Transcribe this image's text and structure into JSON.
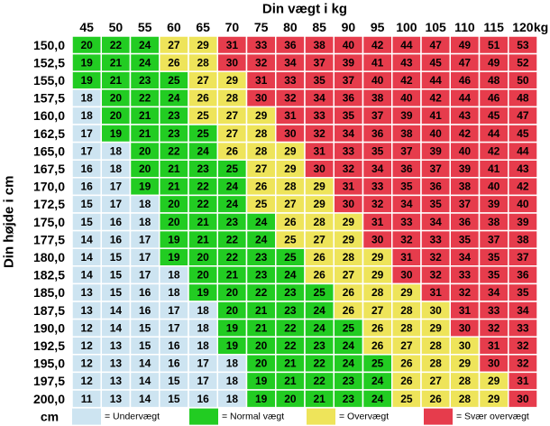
{
  "header": {
    "title": "Din vægt i kg",
    "unit": "kg"
  },
  "side_label": "Din højde i cm",
  "height_unit": "cm",
  "weights": [
    45,
    50,
    55,
    60,
    65,
    70,
    75,
    80,
    85,
    90,
    95,
    100,
    105,
    110,
    115,
    120
  ],
  "heights": [
    "150,0",
    "152,5",
    "155,0",
    "157,5",
    "160,0",
    "162,5",
    "165,0",
    "167,5",
    "170,0",
    "172,5",
    "175,0",
    "177,5",
    "180,0",
    "182,5",
    "185,0",
    "187,5",
    "190,0",
    "192,5",
    "195,0",
    "197,5",
    "200,0"
  ],
  "rows": [
    [
      20,
      22,
      24,
      27,
      29,
      31,
      33,
      36,
      38,
      40,
      42,
      44,
      47,
      49,
      51,
      53
    ],
    [
      19,
      21,
      24,
      26,
      28,
      30,
      32,
      34,
      37,
      39,
      41,
      43,
      45,
      47,
      49,
      52
    ],
    [
      19,
      21,
      23,
      25,
      27,
      29,
      31,
      33,
      35,
      37,
      40,
      42,
      44,
      46,
      48,
      50
    ],
    [
      18,
      20,
      22,
      24,
      26,
      28,
      30,
      32,
      34,
      36,
      38,
      40,
      42,
      44,
      46,
      48
    ],
    [
      18,
      20,
      21,
      23,
      25,
      27,
      29,
      31,
      33,
      35,
      37,
      39,
      41,
      43,
      45,
      47
    ],
    [
      17,
      19,
      21,
      23,
      25,
      27,
      28,
      30,
      32,
      34,
      36,
      38,
      40,
      42,
      44,
      45
    ],
    [
      17,
      18,
      20,
      22,
      24,
      26,
      28,
      29,
      31,
      33,
      35,
      37,
      39,
      40,
      42,
      44
    ],
    [
      16,
      18,
      20,
      21,
      23,
      25,
      27,
      29,
      30,
      32,
      34,
      36,
      37,
      39,
      41,
      43
    ],
    [
      16,
      17,
      19,
      21,
      22,
      24,
      26,
      28,
      29,
      31,
      33,
      35,
      36,
      38,
      40,
      42
    ],
    [
      15,
      17,
      18,
      20,
      22,
      24,
      25,
      27,
      29,
      30,
      32,
      34,
      35,
      37,
      39,
      40
    ],
    [
      15,
      16,
      18,
      20,
      21,
      23,
      24,
      26,
      28,
      29,
      31,
      33,
      34,
      36,
      38,
      39
    ],
    [
      14,
      16,
      17,
      19,
      21,
      22,
      24,
      25,
      27,
      29,
      30,
      32,
      33,
      35,
      37,
      38
    ],
    [
      14,
      15,
      17,
      19,
      20,
      22,
      23,
      25,
      26,
      28,
      29,
      31,
      32,
      34,
      35,
      37
    ],
    [
      14,
      15,
      17,
      18,
      20,
      21,
      23,
      24,
      26,
      27,
      29,
      30,
      32,
      33,
      35,
      36
    ],
    [
      13,
      15,
      16,
      18,
      19,
      20,
      22,
      23,
      25,
      26,
      28,
      29,
      31,
      32,
      34,
      35
    ],
    [
      13,
      14,
      16,
      17,
      18,
      20,
      21,
      23,
      24,
      26,
      27,
      28,
      30,
      31,
      33,
      34
    ],
    [
      12,
      14,
      15,
      17,
      18,
      19,
      21,
      22,
      24,
      25,
      26,
      28,
      29,
      30,
      32,
      33
    ],
    [
      12,
      13,
      15,
      16,
      18,
      19,
      20,
      22,
      23,
      24,
      26,
      27,
      28,
      30,
      31,
      32
    ],
    [
      12,
      13,
      14,
      16,
      17,
      18,
      20,
      21,
      22,
      24,
      25,
      26,
      28,
      29,
      30,
      32
    ],
    [
      12,
      13,
      14,
      15,
      17,
      18,
      19,
      21,
      22,
      23,
      24,
      26,
      27,
      28,
      29,
      31
    ],
    [
      11,
      13,
      14,
      15,
      16,
      18,
      19,
      20,
      21,
      23,
      24,
      25,
      26,
      28,
      29,
      30
    ]
  ],
  "legend": [
    {
      "color": "#cde4f1",
      "label": "= Undervægt"
    },
    {
      "color": "#22cc22",
      "label": "= Normal vægt"
    },
    {
      "color": "#eee45a",
      "label": "= Overvægt"
    },
    {
      "color": "#e63c4c",
      "label": "= Svær overvægt"
    }
  ]
}
